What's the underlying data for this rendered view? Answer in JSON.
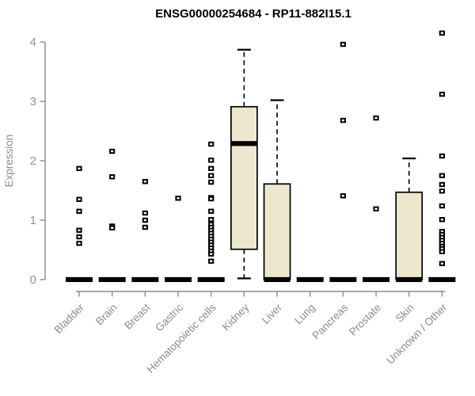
{
  "chart_data": {
    "type": "boxplot",
    "title": "ENSG00000254684 - RP11-882I15.1",
    "ylabel": "Expression",
    "xlabel": "",
    "ylim": [
      0,
      4
    ],
    "y_ticks": [
      0,
      1,
      2,
      3,
      4
    ],
    "grid": "off",
    "legend": "none",
    "categories": [
      "Bladder",
      "Brain",
      "Breast",
      "Gastric",
      "Hematopoietic cells",
      "Kidney",
      "Liver",
      "Lung",
      "Pancreas",
      "Prostate",
      "Skin",
      "Unknown / Other"
    ],
    "series": [
      {
        "label": "Bladder",
        "whislo": 0,
        "q1": 0,
        "med": 0,
        "q3": 0,
        "whishi": 0,
        "outliers": [
          1.87,
          1.35,
          1.15,
          0.83,
          0.72,
          0.61
        ]
      },
      {
        "label": "Brain",
        "whislo": 0,
        "q1": 0,
        "med": 0,
        "q3": 0,
        "whishi": 0,
        "outliers": [
          2.16,
          1.73,
          0.9,
          0.87
        ]
      },
      {
        "label": "Breast",
        "whislo": 0,
        "q1": 0,
        "med": 0,
        "q3": 0,
        "whishi": 0,
        "outliers": [
          1.65,
          1.12,
          1.0,
          0.88
        ]
      },
      {
        "label": "Gastric",
        "whislo": 0,
        "q1": 0,
        "med": 0,
        "q3": 0,
        "whishi": 0,
        "outliers": [
          1.37
        ]
      },
      {
        "label": "Hematopoietic cells",
        "whislo": 0,
        "q1": 0,
        "med": 0,
        "q3": 0,
        "whishi": 0,
        "outliers": [
          2.28,
          2.01,
          1.87,
          1.75,
          1.64,
          1.38,
          1.36,
          1.15,
          1.01,
          0.93,
          0.88,
          0.83,
          0.78,
          0.73,
          0.68,
          0.63,
          0.58,
          0.53,
          0.48,
          0.43,
          0.31
        ]
      },
      {
        "label": "Kidney",
        "whislo": 0.02,
        "q1": 0.51,
        "med": 2.29,
        "q3": 2.91,
        "whishi": 3.87,
        "outliers": []
      },
      {
        "label": "Liver",
        "whislo": 0,
        "q1": 0,
        "med": 0,
        "q3": 1.61,
        "whishi": 3.02,
        "outliers": []
      },
      {
        "label": "Lung",
        "whislo": 0,
        "q1": 0,
        "med": 0,
        "q3": 0,
        "whishi": 0,
        "outliers": []
      },
      {
        "label": "Pancreas",
        "whislo": 0,
        "q1": 0,
        "med": 0,
        "q3": 0,
        "whishi": 0,
        "outliers": [
          3.96,
          2.68,
          1.41
        ]
      },
      {
        "label": "Prostate",
        "whislo": 0,
        "q1": 0,
        "med": 0,
        "q3": 0,
        "whishi": 0,
        "outliers": [
          2.72,
          1.19
        ]
      },
      {
        "label": "Skin",
        "whislo": 0,
        "q1": 0,
        "med": 0,
        "q3": 1.47,
        "whishi": 2.04,
        "outliers": []
      },
      {
        "label": "Unknown / Other",
        "whislo": 0,
        "q1": 0,
        "med": 0,
        "q3": 0,
        "whishi": 0,
        "outliers": [
          4.15,
          3.12,
          2.08,
          1.75,
          1.6,
          1.49,
          1.24,
          1.01,
          0.81,
          0.76,
          0.71,
          0.66,
          0.61,
          0.56,
          0.52,
          0.47,
          0.27
        ]
      }
    ],
    "colors": {
      "box_fill": "#EDE8CD",
      "box_stroke": "#000000",
      "median": "#000000",
      "axis_line": "#8c8c8c",
      "tick_label": "#939393",
      "title": "#000000",
      "background": "#ffffff"
    }
  }
}
